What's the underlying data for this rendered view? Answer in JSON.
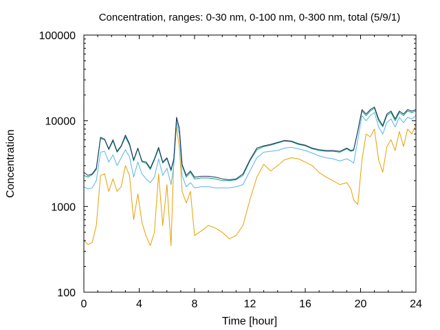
{
  "chart_data": {
    "type": "line",
    "title": "Concentration, ranges: 0-30 nm, 0-100 nm, 0-300 nm, total (5/9/1)",
    "xlabel": "Time [hour]",
    "ylabel": "Concentration",
    "xlim": [
      0,
      24
    ],
    "ylim": [
      100,
      100000
    ],
    "yscale": "log",
    "grid": false,
    "xticks": [
      0,
      4,
      8,
      12,
      16,
      20,
      24
    ],
    "xtick_labels": [
      "0",
      "4",
      "8",
      "12",
      "16",
      "20",
      "24"
    ],
    "yticks": [
      100,
      1000,
      10000,
      100000
    ],
    "ytick_labels": [
      "100",
      "1000",
      "10000",
      "100000"
    ],
    "series": [
      {
        "color": "#e69f00",
        "x": [
          0,
          0.3,
          0.6,
          0.9,
          1.2,
          1.5,
          1.8,
          2.1,
          2.4,
          2.7,
          3.0,
          3.3,
          3.6,
          3.9,
          4.2,
          4.5,
          4.8,
          5.1,
          5.4,
          5.7,
          6.0,
          6.3,
          6.5,
          6.7,
          6.9,
          7.1,
          7.4,
          7.7,
          8.0,
          8.5,
          9.0,
          9.5,
          10.0,
          10.5,
          11.0,
          11.5,
          12.0,
          12.5,
          13.0,
          13.5,
          14.0,
          14.5,
          15.0,
          15.5,
          16.0,
          16.5,
          17.0,
          17.5,
          18.0,
          18.5,
          19.0,
          19.3,
          19.5,
          19.8,
          20.1,
          20.4,
          20.7,
          21.0,
          21.3,
          21.6,
          21.9,
          22.2,
          22.5,
          22.8,
          23.1,
          23.4,
          23.7,
          24.0
        ],
        "y": [
          400,
          360,
          380,
          600,
          2300,
          2400,
          1500,
          2100,
          1500,
          1700,
          3000,
          2300,
          700,
          1400,
          650,
          450,
          350,
          500,
          2400,
          600,
          1800,
          350,
          3500,
          8500,
          4800,
          1500,
          1100,
          1500,
          460,
          520,
          600,
          560,
          500,
          420,
          460,
          600,
          1200,
          2200,
          3100,
          2600,
          3000,
          3500,
          3700,
          3600,
          3300,
          3000,
          2500,
          2200,
          2000,
          1800,
          1900,
          1600,
          1200,
          1050,
          3500,
          7000,
          6500,
          8000,
          3500,
          2500,
          5000,
          6000,
          4500,
          7500,
          5000,
          8000,
          7000,
          9000
        ]
      },
      {
        "color": "#56b4e9",
        "x": [
          0,
          0.3,
          0.6,
          0.9,
          1.2,
          1.5,
          1.8,
          2.1,
          2.4,
          2.7,
          3.0,
          3.3,
          3.6,
          3.9,
          4.2,
          4.5,
          4.8,
          5.1,
          5.4,
          5.7,
          6.0,
          6.3,
          6.5,
          6.7,
          6.9,
          7.1,
          7.4,
          7.7,
          8.0,
          8.5,
          9.0,
          9.5,
          10.0,
          10.5,
          11.0,
          11.5,
          12.0,
          12.5,
          13.0,
          13.5,
          14.0,
          14.5,
          15.0,
          15.5,
          16.0,
          16.5,
          17.0,
          17.5,
          18.0,
          18.5,
          19.0,
          19.3,
          19.5,
          19.8,
          20.1,
          20.4,
          20.7,
          21.0,
          21.3,
          21.6,
          21.9,
          22.2,
          22.5,
          22.8,
          23.1,
          23.4,
          23.7,
          24.0
        ],
        "y": [
          1700,
          1600,
          1650,
          2000,
          4300,
          4400,
          3300,
          4000,
          3000,
          3700,
          4600,
          3800,
          2200,
          3300,
          2400,
          2100,
          1900,
          2200,
          3600,
          2300,
          2800,
          1800,
          3000,
          9500,
          7000,
          2300,
          1700,
          1900,
          1650,
          1700,
          1700,
          1650,
          1650,
          1650,
          1700,
          1800,
          2600,
          3700,
          4300,
          4400,
          4500,
          4800,
          4900,
          4700,
          4500,
          4200,
          3900,
          3700,
          3600,
          3400,
          3600,
          3400,
          3200,
          6000,
          11500,
          10000,
          11500,
          12500,
          8500,
          7000,
          9500,
          10500,
          8500,
          11000,
          9500,
          11000,
          10500,
          11500
        ]
      },
      {
        "color": "#009e73",
        "x": [
          0,
          0.3,
          0.6,
          0.9,
          1.2,
          1.5,
          1.8,
          2.1,
          2.4,
          2.7,
          3.0,
          3.3,
          3.6,
          3.9,
          4.2,
          4.5,
          4.8,
          5.1,
          5.4,
          5.7,
          6.0,
          6.3,
          6.5,
          6.7,
          6.9,
          7.1,
          7.4,
          7.7,
          8.0,
          8.5,
          9.0,
          9.5,
          10.0,
          10.5,
          11.0,
          11.5,
          12.0,
          12.5,
          13.0,
          13.5,
          14.0,
          14.5,
          15.0,
          15.5,
          16.0,
          16.5,
          17.0,
          17.5,
          18.0,
          18.5,
          19.0,
          19.3,
          19.5,
          19.8,
          20.1,
          20.4,
          20.7,
          21.0,
          21.3,
          21.6,
          21.9,
          22.2,
          22.5,
          22.8,
          23.1,
          23.4,
          23.7,
          24.0
        ],
        "y": [
          2300,
          2200,
          2350,
          2700,
          6200,
          6000,
          4600,
          5800,
          4300,
          5000,
          6500,
          5200,
          3400,
          4700,
          3300,
          3200,
          2700,
          3500,
          4700,
          3200,
          3600,
          2600,
          3500,
          10500,
          8000,
          3000,
          2200,
          2500,
          2100,
          2150,
          2150,
          2100,
          2000,
          2000,
          2050,
          2300,
          3400,
          4600,
          5000,
          5200,
          5500,
          5800,
          5700,
          5300,
          5100,
          4700,
          4500,
          4400,
          4400,
          4300,
          4700,
          4400,
          4500,
          7500,
          13000,
          11500,
          13000,
          14000,
          10000,
          8500,
          11500,
          12500,
          10000,
          12500,
          11500,
          13000,
          12500,
          13000
        ]
      },
      {
        "color": "#1f2c5e",
        "x": [
          0,
          0.3,
          0.6,
          0.9,
          1.2,
          1.5,
          1.8,
          2.1,
          2.4,
          2.7,
          3.0,
          3.3,
          3.6,
          3.9,
          4.2,
          4.5,
          4.8,
          5.1,
          5.4,
          5.7,
          6.0,
          6.3,
          6.5,
          6.7,
          6.9,
          7.1,
          7.4,
          7.7,
          8.0,
          8.5,
          9.0,
          9.5,
          10.0,
          10.5,
          11.0,
          11.5,
          12.0,
          12.5,
          13.0,
          13.5,
          14.0,
          14.5,
          15.0,
          15.5,
          16.0,
          16.5,
          17.0,
          17.5,
          18.0,
          18.5,
          19.0,
          19.3,
          19.5,
          19.8,
          20.1,
          20.4,
          20.7,
          21.0,
          21.3,
          21.6,
          21.9,
          22.2,
          22.5,
          22.8,
          23.1,
          23.4,
          23.7,
          24.0
        ],
        "y": [
          2500,
          2300,
          2400,
          2800,
          6400,
          6100,
          4700,
          6000,
          4400,
          5100,
          6800,
          5400,
          3500,
          4800,
          3400,
          3300,
          2800,
          3600,
          4900,
          3300,
          3700,
          2700,
          3600,
          11000,
          8200,
          3100,
          2300,
          2600,
          2200,
          2250,
          2250,
          2200,
          2100,
          2050,
          2100,
          2400,
          3500,
          4800,
          5100,
          5300,
          5600,
          5900,
          5800,
          5400,
          5200,
          4800,
          4600,
          4500,
          4500,
          4400,
          4800,
          4500,
          4600,
          7700,
          13500,
          12000,
          13500,
          14500,
          10500,
          8800,
          12000,
          13000,
          10500,
          13000,
          12000,
          13500,
          13000,
          13500
        ]
      }
    ]
  }
}
